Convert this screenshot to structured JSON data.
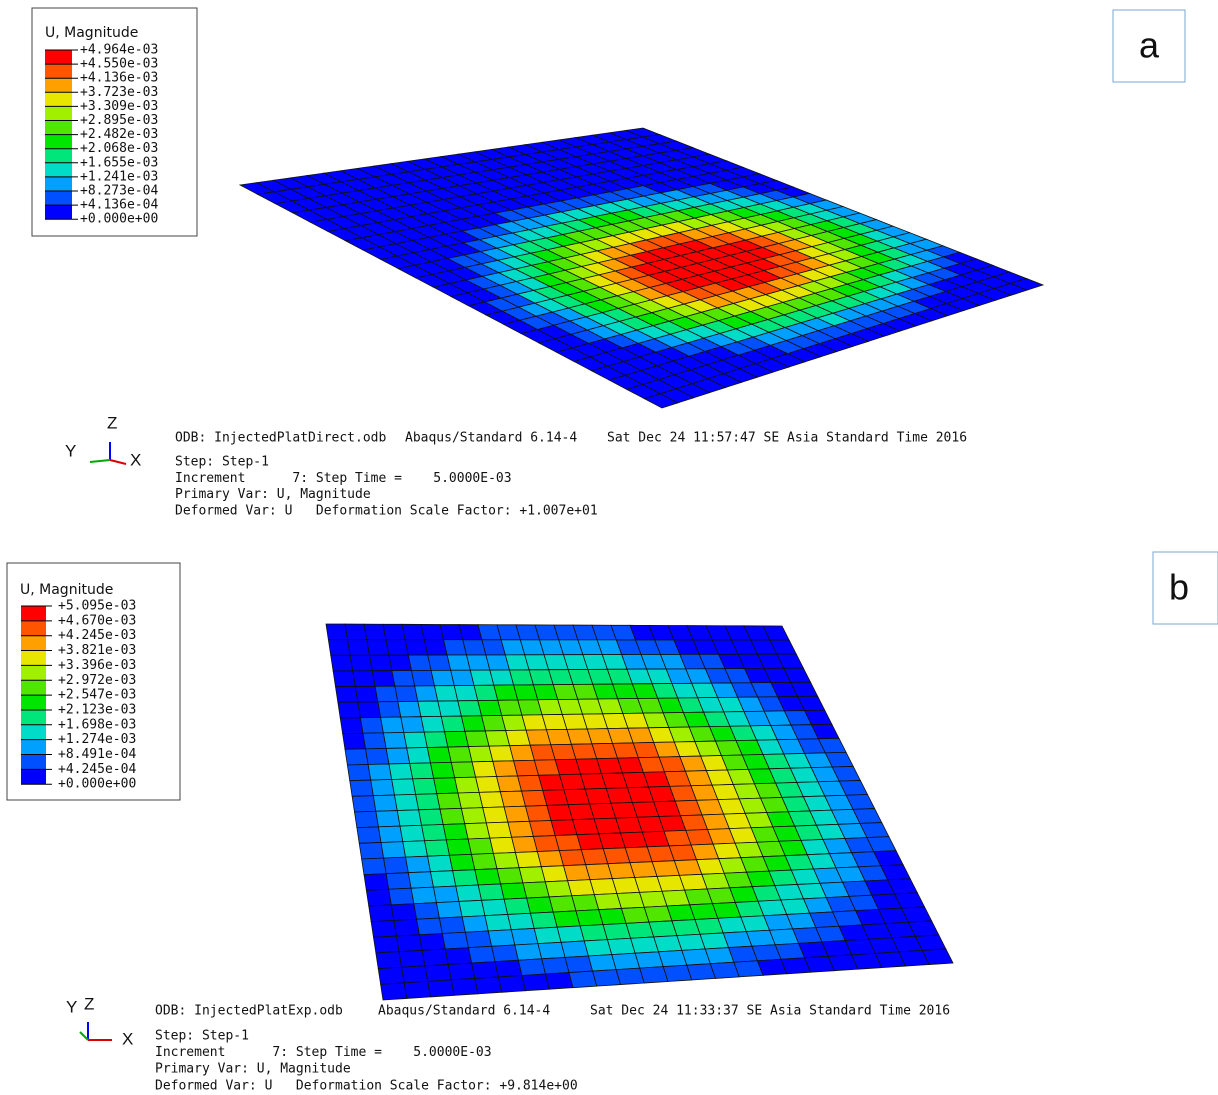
{
  "panels": [
    {
      "label": "a",
      "legend": {
        "title": "U, Magnitude",
        "values": [
          "+4.964e-03",
          "+4.550e-03",
          "+4.136e-03",
          "+3.723e-03",
          "+3.309e-03",
          "+2.895e-03",
          "+2.482e-03",
          "+2.068e-03",
          "+1.655e-03",
          "+1.241e-03",
          "+8.273e-04",
          "+4.136e-04",
          "+0.000e+00"
        ]
      },
      "triad": {
        "y": "Y",
        "z": "Z",
        "x": "X"
      },
      "info": {
        "odb": "ODB: InjectedPlatDirect.odb",
        "solver": "Abaqus/Standard 6.14-4",
        "date": "Sat Dec 24 11:57:47 SE Asia Standard Time 2016",
        "lines": [
          "Step: Step-1",
          "Increment      7: Step Time =    5.0000E-03",
          "Primary Var: U, Magnitude",
          "Deformed Var: U   Deformation Scale Factor: +1.007e+01"
        ]
      }
    },
    {
      "label": "b",
      "legend": {
        "title": "U, Magnitude",
        "values": [
          "+5.095e-03",
          "+4.670e-03",
          "+4.245e-03",
          "+3.821e-03",
          "+3.396e-03",
          "+2.972e-03",
          "+2.547e-03",
          "+2.123e-03",
          "+1.698e-03",
          "+1.274e-03",
          "+8.491e-04",
          "+4.245e-04",
          "+0.000e+00"
        ]
      },
      "triad": {
        "y": "Y",
        "z": "Z",
        "x": "X"
      },
      "info": {
        "odb": "ODB: InjectedPlatExp.odb",
        "solver": "Abaqus/Standard 6.14-4",
        "date": "Sat Dec 24 11:33:37 SE Asia Standard Time 2016",
        "lines": [
          "Step: Step-1",
          "Increment      7: Step Time =    5.0000E-03",
          "Primary Var: U, Magnitude",
          "Deformed Var: U   Deformation Scale Factor: +9.814e+00"
        ]
      }
    }
  ]
}
